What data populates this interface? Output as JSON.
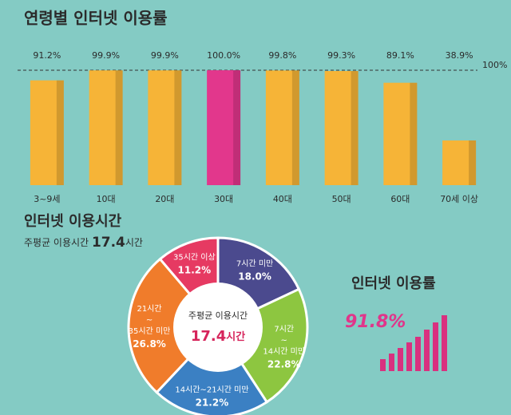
{
  "chart_data": [
    {
      "type": "bar",
      "title": "연령별 인터넷 이용률",
      "categories": [
        "3~9세",
        "10대",
        "20대",
        "30대",
        "40대",
        "50대",
        "60대",
        "70세 이상"
      ],
      "values": [
        91.2,
        99.9,
        99.9,
        100.0,
        99.8,
        99.3,
        89.1,
        38.9
      ],
      "value_labels": [
        "91.2%",
        "99.9%",
        "99.9%",
        "100.0%",
        "99.8%",
        "99.3%",
        "89.1%",
        "38.9%"
      ],
      "colors": [
        "#f6b437",
        "#f6b437",
        "#f6b437",
        "#e2378c",
        "#f6b437",
        "#f6b437",
        "#f6b437",
        "#f6b437"
      ],
      "ylim": [
        0,
        100
      ],
      "reference_line": {
        "value": 100,
        "label": "100%"
      }
    },
    {
      "type": "donut",
      "title": "인터넷 이용시간",
      "average": {
        "label": "주평균 이용시간",
        "value": 17.4,
        "unit": "시간"
      },
      "categories": [
        [
          "7시간 미만"
        ],
        [
          "7시간",
          "~",
          "14시간 미만"
        ],
        [
          "14시간~21시간 미만"
        ],
        [
          "21시간",
          "~",
          "35시간 미만"
        ],
        [
          "35시간 이상"
        ]
      ],
      "values": [
        18.0,
        22.8,
        21.2,
        26.8,
        11.2
      ],
      "value_labels": [
        "18.0%",
        "22.8%",
        "21.2%",
        "26.8%",
        "11.2%"
      ],
      "colors": [
        "#4b4a8e",
        "#8dc640",
        "#3b80c3",
        "#f07c2b",
        "#e63a62"
      ]
    }
  ],
  "summary": {
    "title": "인터넷 이용률",
    "value": "91.8%"
  }
}
